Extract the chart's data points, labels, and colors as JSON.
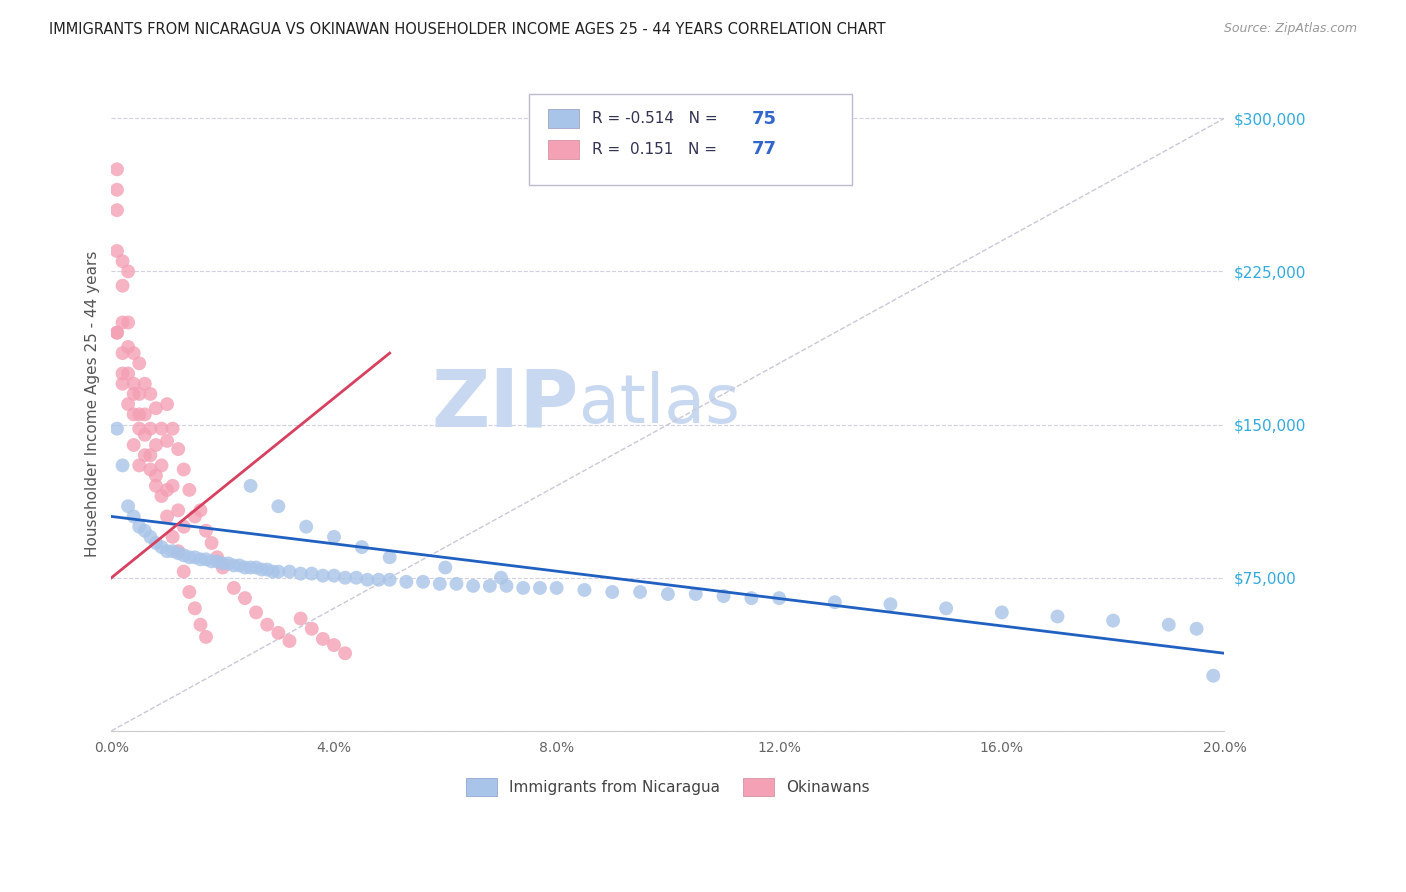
{
  "title": "IMMIGRANTS FROM NICARAGUA VS OKINAWAN HOUSEHOLDER INCOME AGES 25 - 44 YEARS CORRELATION CHART",
  "source": "Source: ZipAtlas.com",
  "ylabel": "Householder Income Ages 25 - 44 years",
  "y_ticks": [
    0,
    75000,
    150000,
    225000,
    300000
  ],
  "y_tick_labels": [
    "",
    "$75,000",
    "$150,000",
    "$225,000",
    "$300,000"
  ],
  "x_min": 0.0,
  "x_max": 0.2,
  "y_min": 0,
  "y_max": 320000,
  "blue_color": "#a8c4e8",
  "pink_color": "#f4a0b5",
  "blue_line_color": "#2060c0",
  "pink_line_color": "#d84060",
  "dashed_line_color": "#c8c8d8",
  "watermark_zip": "ZIP",
  "watermark_atlas": "atlas",
  "watermark_color": "#c8d8f0",
  "blue_scatter_x": [
    0.001,
    0.002,
    0.003,
    0.004,
    0.005,
    0.006,
    0.007,
    0.008,
    0.009,
    0.01,
    0.011,
    0.012,
    0.013,
    0.014,
    0.015,
    0.016,
    0.017,
    0.018,
    0.019,
    0.02,
    0.021,
    0.022,
    0.023,
    0.024,
    0.025,
    0.026,
    0.027,
    0.028,
    0.029,
    0.03,
    0.032,
    0.034,
    0.036,
    0.038,
    0.04,
    0.042,
    0.044,
    0.046,
    0.048,
    0.05,
    0.053,
    0.056,
    0.059,
    0.062,
    0.065,
    0.068,
    0.071,
    0.074,
    0.077,
    0.08,
    0.085,
    0.09,
    0.095,
    0.1,
    0.105,
    0.11,
    0.115,
    0.12,
    0.13,
    0.14,
    0.15,
    0.16,
    0.17,
    0.18,
    0.19,
    0.195,
    0.198,
    0.025,
    0.03,
    0.035,
    0.04,
    0.045,
    0.05,
    0.06,
    0.07
  ],
  "blue_scatter_y": [
    148000,
    130000,
    110000,
    105000,
    100000,
    98000,
    95000,
    92000,
    90000,
    88000,
    88000,
    87000,
    86000,
    85000,
    85000,
    84000,
    84000,
    83000,
    83000,
    82000,
    82000,
    81000,
    81000,
    80000,
    80000,
    80000,
    79000,
    79000,
    78000,
    78000,
    78000,
    77000,
    77000,
    76000,
    76000,
    75000,
    75000,
    74000,
    74000,
    74000,
    73000,
    73000,
    72000,
    72000,
    71000,
    71000,
    71000,
    70000,
    70000,
    70000,
    69000,
    68000,
    68000,
    67000,
    67000,
    66000,
    65000,
    65000,
    63000,
    62000,
    60000,
    58000,
    56000,
    54000,
    52000,
    50000,
    27000,
    120000,
    110000,
    100000,
    95000,
    90000,
    85000,
    80000,
    75000
  ],
  "pink_scatter_x": [
    0.001,
    0.001,
    0.001,
    0.001,
    0.001,
    0.002,
    0.002,
    0.002,
    0.002,
    0.002,
    0.003,
    0.003,
    0.003,
    0.003,
    0.004,
    0.004,
    0.004,
    0.004,
    0.005,
    0.005,
    0.005,
    0.005,
    0.006,
    0.006,
    0.006,
    0.007,
    0.007,
    0.007,
    0.008,
    0.008,
    0.008,
    0.009,
    0.009,
    0.01,
    0.01,
    0.01,
    0.011,
    0.011,
    0.012,
    0.012,
    0.013,
    0.013,
    0.014,
    0.015,
    0.016,
    0.017,
    0.018,
    0.019,
    0.02,
    0.022,
    0.024,
    0.026,
    0.028,
    0.03,
    0.032,
    0.034,
    0.036,
    0.038,
    0.04,
    0.042,
    0.001,
    0.002,
    0.003,
    0.004,
    0.005,
    0.006,
    0.007,
    0.008,
    0.009,
    0.01,
    0.011,
    0.012,
    0.013,
    0.014,
    0.015,
    0.016,
    0.017
  ],
  "pink_scatter_y": [
    275000,
    265000,
    255000,
    235000,
    195000,
    230000,
    218000,
    200000,
    185000,
    170000,
    200000,
    188000,
    175000,
    160000,
    185000,
    170000,
    155000,
    140000,
    180000,
    165000,
    148000,
    130000,
    170000,
    155000,
    135000,
    165000,
    148000,
    128000,
    158000,
    140000,
    120000,
    148000,
    130000,
    160000,
    142000,
    118000,
    148000,
    120000,
    138000,
    108000,
    128000,
    100000,
    118000,
    105000,
    108000,
    98000,
    92000,
    85000,
    80000,
    70000,
    65000,
    58000,
    52000,
    48000,
    44000,
    55000,
    50000,
    45000,
    42000,
    38000,
    195000,
    175000,
    225000,
    165000,
    155000,
    145000,
    135000,
    125000,
    115000,
    105000,
    95000,
    88000,
    78000,
    68000,
    60000,
    52000,
    46000
  ]
}
